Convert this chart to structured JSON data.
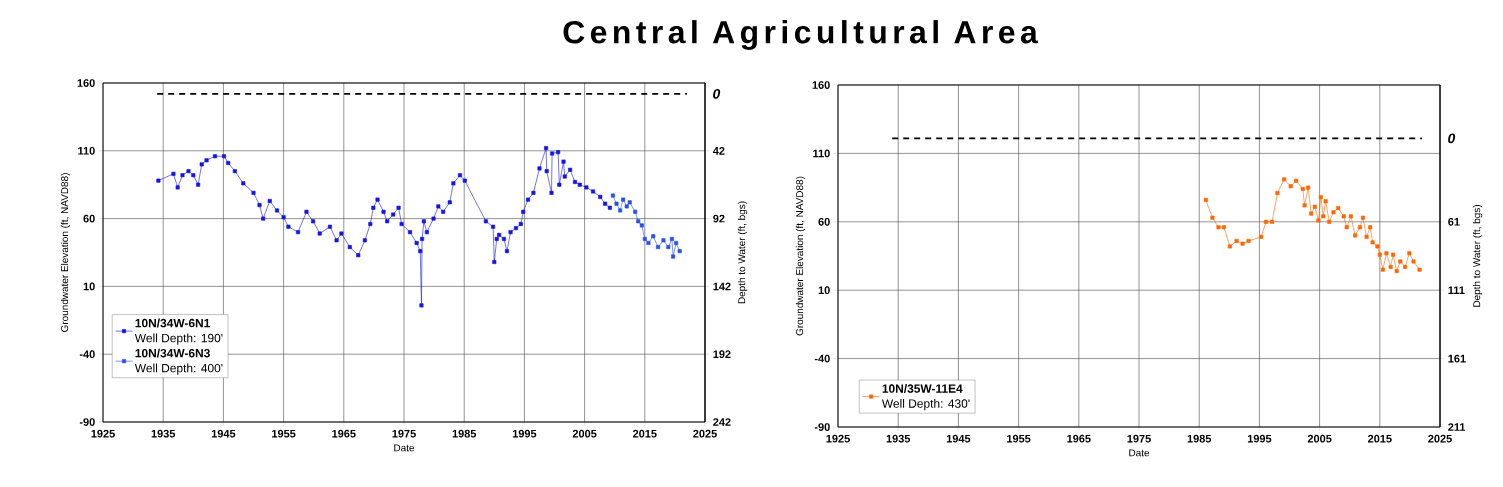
{
  "chart_data": [
    {
      "type": "line",
      "title": "Central Agricultural Area",
      "xlabel": "Date",
      "ylabel": "Groundwater Elevation (ft, NAVD88)",
      "y2label": "Depth to Water (ft, bgs)",
      "xlim": [
        1925,
        2025
      ],
      "xticks": [
        1925,
        1935,
        1945,
        1955,
        1965,
        1975,
        1985,
        1995,
        2005,
        2015,
        2025
      ],
      "ylim": [
        -90,
        160
      ],
      "yticks": [
        -90,
        -40,
        10,
        60,
        110,
        160
      ],
      "y2lim": [
        242,
        -8
      ],
      "y2ticks": [
        42,
        92,
        142,
        192,
        242
      ],
      "ref_lines": [
        {
          "axis": "y2",
          "value": 0,
          "label": "0",
          "line_style": "dashed"
        }
      ],
      "grid": true,
      "legend": "bottom left",
      "marker": "square",
      "line_style": "solid",
      "annotations": [
        "Well Depth: 190'",
        "Well Depth: 400'"
      ],
      "series": [
        {
          "name": "10N/34W-6N1",
          "color": "#1414e6",
          "x": [
            1934.2,
            1936.7,
            1937.4,
            1938.2,
            1939.2,
            1940.0,
            1940.8,
            1941.4,
            1942.2,
            1943.6,
            1945.1,
            1945.8,
            1946.9,
            1948.3,
            1950.0,
            1951.0,
            1951.6,
            1952.7,
            1953.9,
            1955.0,
            1955.8,
            1957.4,
            1958.8,
            1959.9,
            1961.0,
            1962.7,
            1963.8,
            1964.6,
            1966.0,
            1967.4,
            1968.5,
            1969.4,
            1969.9,
            1970.6,
            1971.6,
            1972.2,
            1973.2,
            1974.1,
            1974.6,
            1976.0,
            1977.1,
            1977.7,
            1977.9,
            1978.0,
            1978.3,
            1978.8,
            1979.9,
            1980.7,
            1981.5,
            1982.6,
            1983.2,
            1984.3,
            1985.1,
            1988.6,
            1989.8,
            1990.0,
            1990.4,
            1990.8,
            1991.6,
            1992.1,
            1992.7,
            1993.6,
            1994.4,
            1994.8,
            1995.6,
            1996.5,
            1997.5,
            1998.6,
            1998.7,
            1999.5,
            1999.6,
            2000.6,
            2000.8,
            2001.5,
            2001.7,
            2002.6,
            2003.4,
            2004.2,
            2005.3,
            2006.4,
            2007.6,
            2008.4,
            2009.2
          ],
          "values": [
            88,
            93,
            83,
            92,
            95,
            92,
            85,
            100,
            103,
            106,
            106,
            101,
            95,
            86,
            79,
            70,
            60,
            73,
            66,
            61,
            54,
            50,
            65,
            58,
            49,
            54,
            44,
            49,
            39,
            33,
            44,
            56,
            68,
            74,
            65,
            58,
            63,
            68,
            56,
            50,
            42,
            36,
            -4,
            45,
            58,
            50,
            60,
            69,
            65,
            72,
            86,
            92,
            88,
            58,
            54,
            28,
            45,
            48,
            45,
            36,
            50,
            53,
            56,
            65,
            74,
            79,
            97,
            112,
            95,
            79,
            108,
            109,
            85,
            102,
            91,
            96,
            87,
            85,
            83,
            80,
            76,
            71,
            68
          ]
        },
        {
          "name": "10N/34W-6N3",
          "color": "#2a4fe8",
          "x": [
            2009.7,
            2010.3,
            2010.9,
            2011.4,
            2012.0,
            2012.5,
            2013.4,
            2013.9,
            2014.5,
            2015.0,
            2015.6,
            2016.4,
            2017.2,
            2018.1,
            2018.9,
            2019.5,
            2019.7,
            2020.2,
            2020.8
          ],
          "values": [
            77,
            71,
            66,
            74,
            69,
            72,
            65,
            58,
            55,
            45,
            42,
            47,
            39,
            44,
            39,
            45,
            32,
            42,
            36
          ]
        }
      ]
    },
    {
      "type": "line",
      "xlabel": "Date",
      "ylabel": "Groundwater Elevation (ft, NAVD88)",
      "y2label": "Depth to Water (ft, bgs)",
      "xlim": [
        1925,
        2025
      ],
      "xticks": [
        1925,
        1935,
        1945,
        1955,
        1965,
        1975,
        1985,
        1995,
        2005,
        2015,
        2025
      ],
      "ylim": [
        -90,
        160
      ],
      "yticks": [
        -90,
        -40,
        10,
        60,
        110,
        160
      ],
      "y2lim": [
        211,
        -39
      ],
      "y2ticks": [
        61,
        111,
        161,
        211
      ],
      "ref_lines": [
        {
          "axis": "y2",
          "value": 0,
          "label": "0",
          "line_style": "dashed"
        }
      ],
      "grid": true,
      "legend": "bottom left",
      "marker": "square",
      "line_style": "solid",
      "annotations": [
        "Well Depth: 430'"
      ],
      "series": [
        {
          "name": "10N/35W-11E4",
          "color": "#ff6600",
          "x": [
            1986.1,
            1987.2,
            1988.2,
            1989.1,
            1990.1,
            1991.2,
            1992.2,
            1993.2,
            1995.3,
            1996.1,
            1997.1,
            1998.0,
            1999.1,
            2000.2,
            2001.1,
            2002.2,
            2002.5,
            2003.1,
            2003.6,
            2004.2,
            2004.8,
            2005.2,
            2005.6,
            2006.0,
            2006.6,
            2007.3,
            2008.1,
            2009.0,
            2009.5,
            2010.2,
            2010.9,
            2011.7,
            2012.2,
            2012.8,
            2013.4,
            2013.8,
            2014.6,
            2015.0,
            2015.5,
            2016.1,
            2016.8,
            2017.2,
            2017.8,
            2018.4,
            2019.2,
            2019.9,
            2020.6,
            2021.6
          ],
          "values": [
            76,
            63,
            56,
            56,
            42,
            46,
            44,
            46,
            49,
            60,
            60,
            81,
            91,
            86,
            90,
            84,
            72,
            85,
            66,
            71,
            61,
            78,
            64,
            75,
            60,
            67,
            70,
            64,
            56,
            64,
            50,
            56,
            63,
            49,
            56,
            45,
            42,
            36,
            25,
            37,
            27,
            36,
            24,
            31,
            27,
            37,
            31,
            25
          ]
        }
      ]
    }
  ]
}
